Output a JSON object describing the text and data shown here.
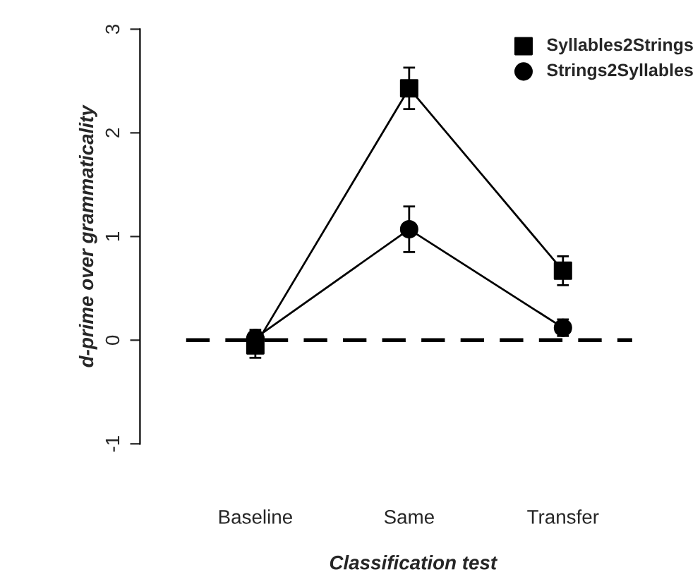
{
  "chart_data": {
    "type": "line",
    "xlabel": "Classification test",
    "ylabel": "d-prime over grammaticality",
    "categories": [
      "Baseline",
      "Same",
      "Transfer"
    ],
    "series": [
      {
        "name": "Syllables2Strings",
        "color": "#000000",
        "marker": "square",
        "values": [
          -0.05,
          2.43,
          0.67
        ],
        "errors": [
          0.12,
          0.2,
          0.14
        ]
      },
      {
        "name": "Strings2Syllables",
        "color": "#000000",
        "marker": "circle",
        "values": [
          0.02,
          1.07,
          0.12
        ],
        "errors": [
          0.08,
          0.22,
          0.08
        ]
      }
    ],
    "ylim": [
      -1,
      3
    ],
    "yticks": [
      -1,
      0,
      1,
      2,
      3
    ],
    "ref_lines": [
      {
        "axis": "y",
        "value": 0,
        "line_style": "dashed",
        "color": "#000000"
      }
    ],
    "legend": "top right",
    "grid": false,
    "line_style": "solid"
  }
}
